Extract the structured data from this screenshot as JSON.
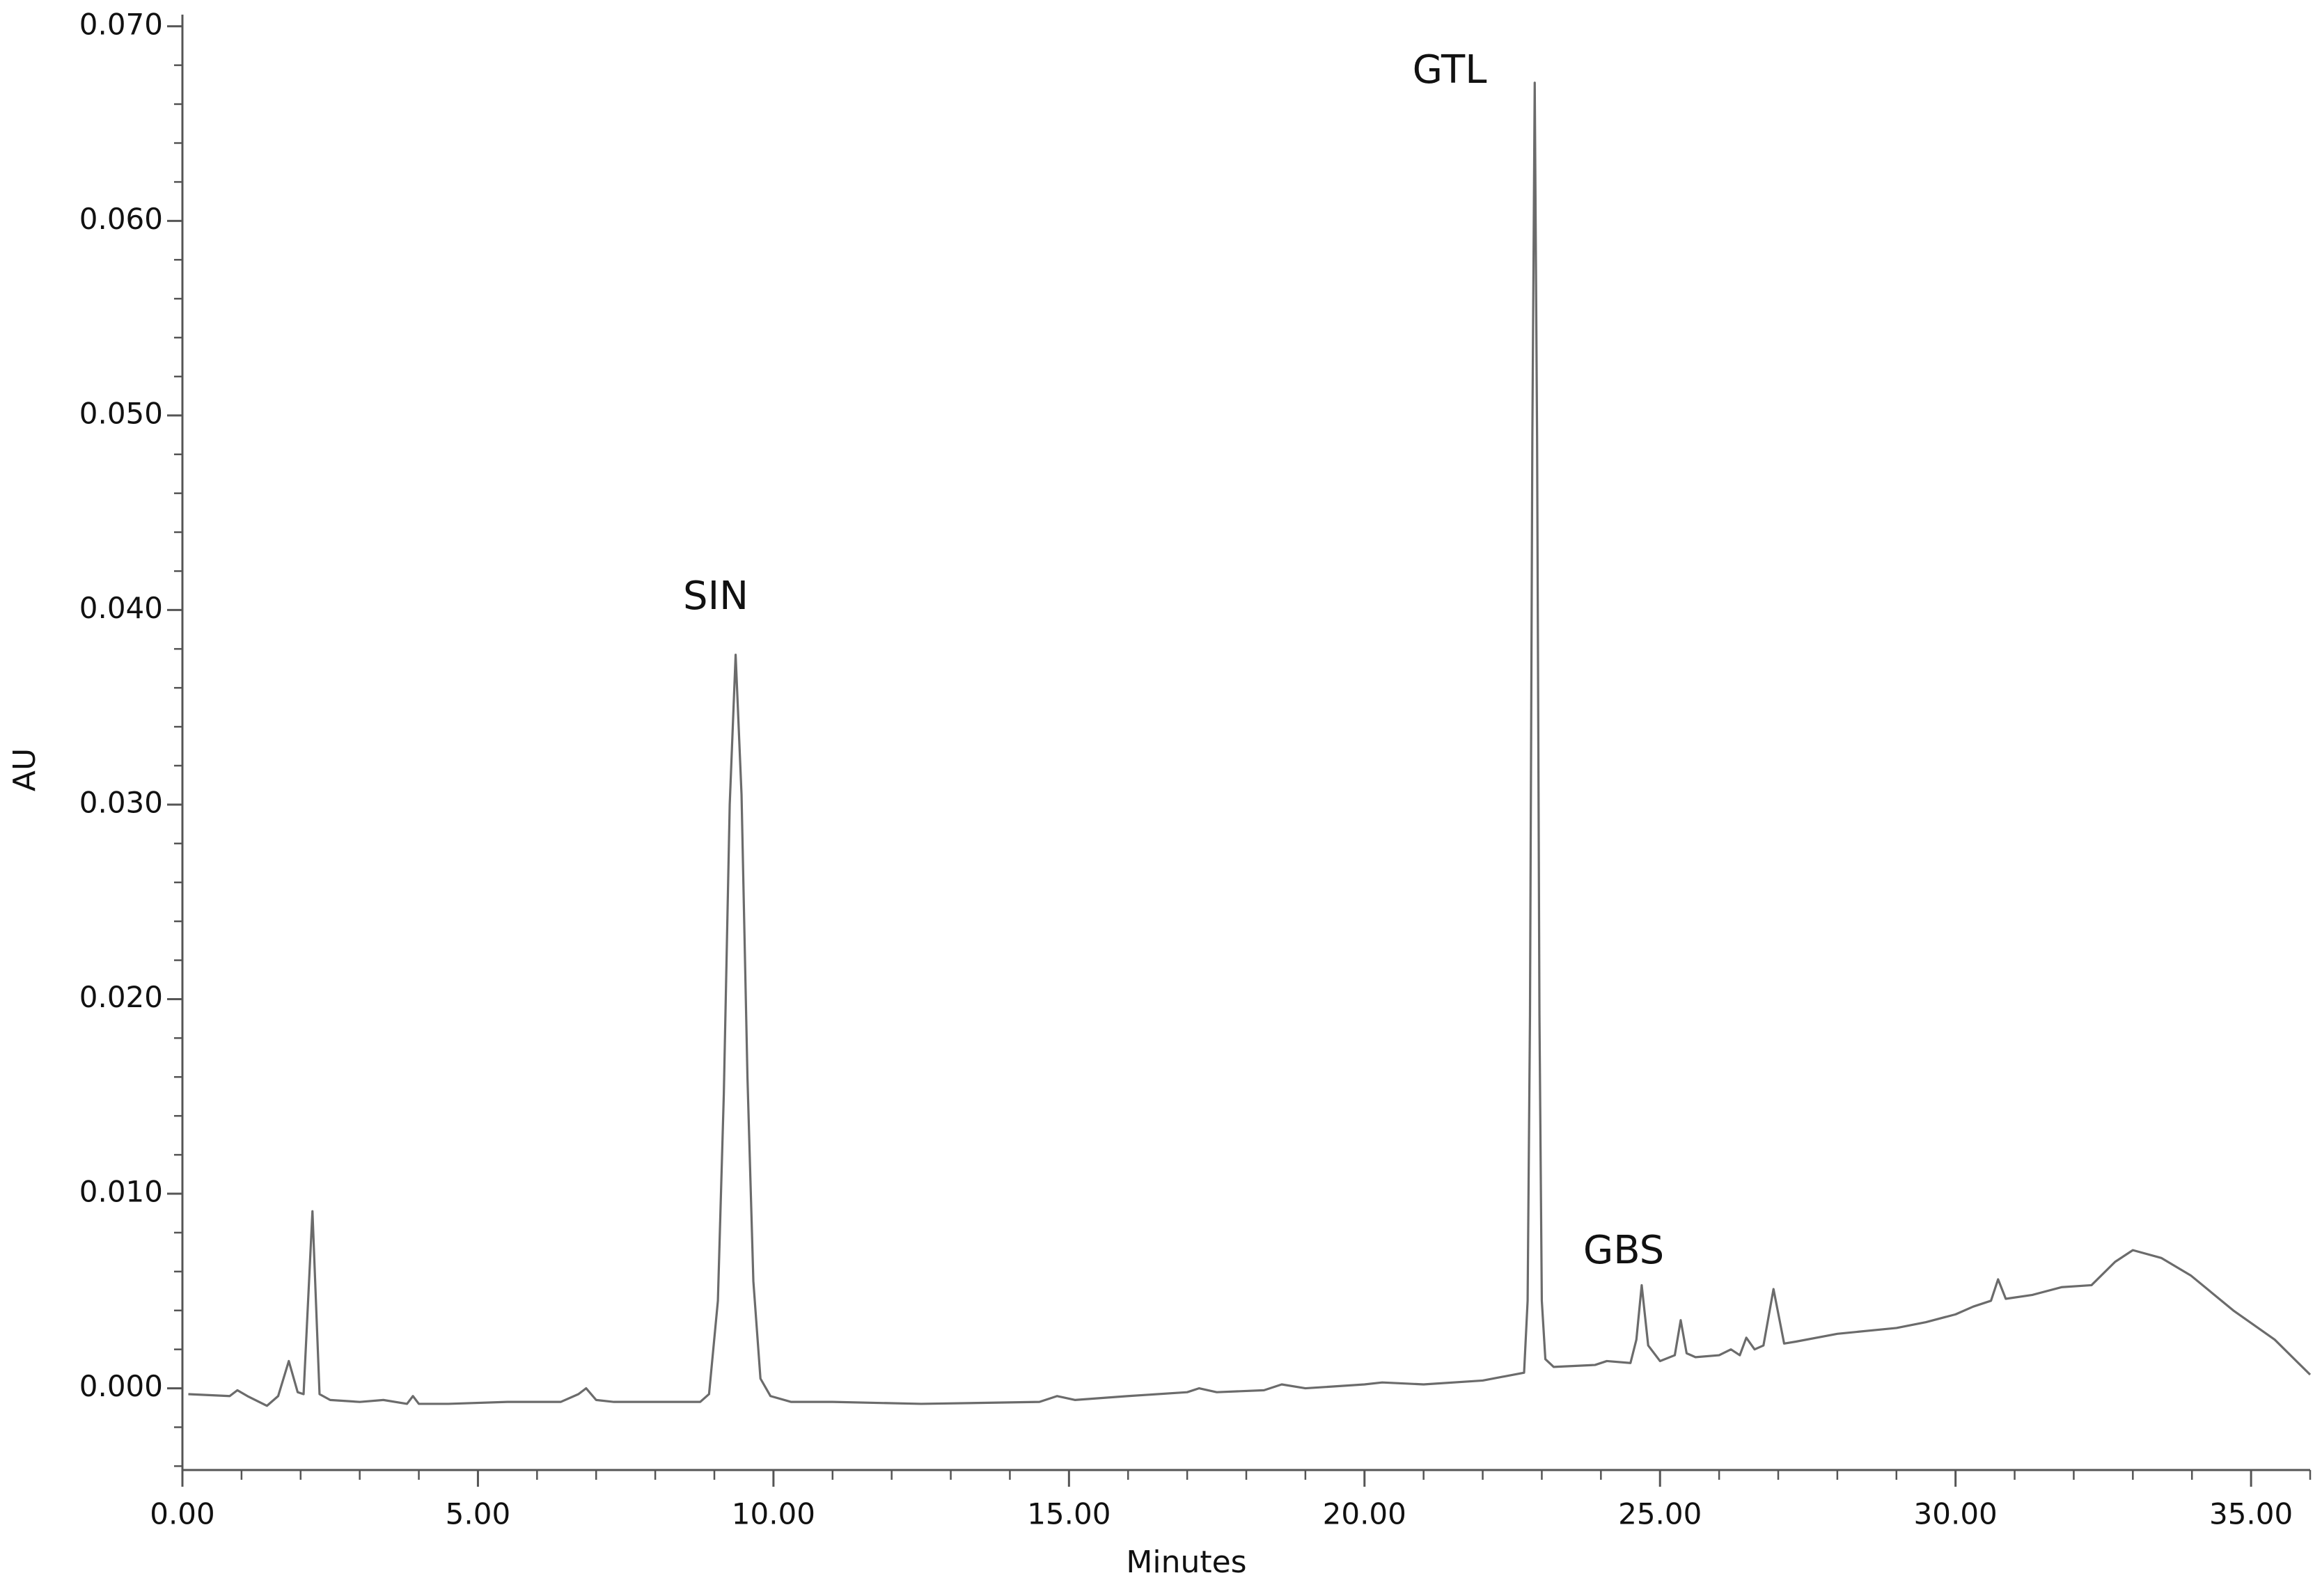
{
  "chart_data": {
    "type": "line",
    "xlabel": "Minutes",
    "ylabel": "AU",
    "annotations": [
      "SIN",
      "GTL",
      "GBS"
    ],
    "xlim": [
      0,
      36
    ],
    "ylim": [
      -0.0042,
      0.0706
    ],
    "xticks": [
      {
        "value": 0,
        "label": "0.00"
      },
      {
        "value": 5,
        "label": "5.00"
      },
      {
        "value": 10,
        "label": "10.00"
      },
      {
        "value": 15,
        "label": "15.00"
      },
      {
        "value": 20,
        "label": "20.00"
      },
      {
        "value": 25,
        "label": "25.00"
      },
      {
        "value": 30,
        "label": "30.00"
      },
      {
        "value": 35,
        "label": "35.00"
      }
    ],
    "xticks_minor": [
      1,
      2,
      3,
      4,
      6,
      7,
      8,
      9,
      11,
      12,
      13,
      14,
      16,
      17,
      18,
      19,
      21,
      22,
      23,
      24,
      26,
      27,
      28,
      29,
      31,
      32,
      33,
      34,
      36
    ],
    "yticks": [
      {
        "value": 0,
        "label": "0.000"
      },
      {
        "value": 0.01,
        "label": "0.010"
      },
      {
        "value": 0.02,
        "label": "0.020"
      },
      {
        "value": 0.03,
        "label": "0.030"
      },
      {
        "value": 0.04,
        "label": "0.040"
      },
      {
        "value": 0.05,
        "label": "0.050"
      },
      {
        "value": 0.06,
        "label": "0.060"
      },
      {
        "value": 0.07,
        "label": "0.070"
      }
    ],
    "yticks_minor": [
      -0.004,
      -0.002,
      0.002,
      0.004,
      0.006,
      0.008,
      0.012,
      0.014,
      0.016,
      0.018,
      0.022,
      0.024,
      0.026,
      0.028,
      0.032,
      0.034,
      0.036,
      0.038,
      0.042,
      0.044,
      0.046,
      0.048,
      0.052,
      0.054,
      0.056,
      0.058,
      0.062,
      0.064,
      0.066,
      0.068
    ],
    "series": [
      {
        "color": "#6b6b6b",
        "x": [
          0.1,
          0.8,
          0.93,
          1.1,
          1.43,
          1.62,
          1.8,
          1.95,
          2.05,
          2.2,
          2.32,
          2.5,
          3.0,
          3.4,
          3.8,
          3.9,
          4.0,
          4.5,
          5.5,
          6.4,
          6.7,
          6.83,
          7.0,
          7.3,
          8.0,
          8.76,
          8.91,
          9.06,
          9.16,
          9.26,
          9.36,
          9.46,
          9.56,
          9.66,
          9.78,
          9.95,
          10.3,
          11.0,
          12.5,
          14.5,
          14.8,
          15.1,
          16.0,
          17.0,
          17.2,
          17.5,
          18.3,
          18.6,
          19.0,
          20.0,
          20.3,
          21.0,
          22.0,
          22.7,
          22.76,
          22.8,
          22.84,
          22.88,
          22.92,
          22.96,
          23.0,
          23.06,
          23.2,
          23.9,
          24.1,
          24.5,
          24.6,
          24.69,
          24.8,
          25.0,
          25.25,
          25.35,
          25.45,
          25.6,
          26.0,
          26.2,
          26.35,
          26.46,
          26.6,
          26.75,
          26.92,
          27.1,
          27.3,
          28.0,
          29.0,
          29.5,
          30.0,
          30.3,
          30.6,
          30.72,
          30.85,
          31.3,
          31.8,
          32.3,
          32.7,
          33.0,
          33.48,
          33.98,
          34.7,
          35.4,
          36.0
        ],
        "values": [
          -0.0003,
          -0.0004,
          -0.0001,
          -0.0004,
          -0.0009,
          -0.0004,
          0.0014,
          -0.0002,
          -0.0003,
          0.0091,
          -0.0003,
          -0.0006,
          -0.0007,
          -0.0006,
          -0.0008,
          -0.0004,
          -0.0008,
          -0.0008,
          -0.0007,
          -0.0007,
          -0.0003,
          0.0,
          -0.0006,
          -0.0007,
          -0.0007,
          -0.0007,
          -0.0003,
          0.0045,
          0.0151,
          0.03,
          0.0377,
          0.0305,
          0.016,
          0.0055,
          0.0005,
          -0.0004,
          -0.0007,
          -0.0007,
          -0.0008,
          -0.0007,
          -0.0004,
          -0.0006,
          -0.0004,
          -0.0002,
          0.0,
          -0.0002,
          -0.0001,
          0.0002,
          0.0,
          0.0002,
          0.0003,
          0.0002,
          0.0004,
          0.0008,
          0.0045,
          0.0192,
          0.0489,
          0.0671,
          0.0489,
          0.0192,
          0.0045,
          0.0015,
          0.0011,
          0.0012,
          0.0014,
          0.0013,
          0.0025,
          0.0053,
          0.0022,
          0.0014,
          0.0017,
          0.0035,
          0.0018,
          0.0016,
          0.0017,
          0.002,
          0.0017,
          0.0026,
          0.002,
          0.0022,
          0.0051,
          0.0023,
          0.0024,
          0.0028,
          0.0031,
          0.0034,
          0.0038,
          0.0042,
          0.0045,
          0.0056,
          0.0046,
          0.0048,
          0.0052,
          0.0053,
          0.0065,
          0.0071,
          0.0067,
          0.0058,
          0.004,
          0.0025,
          0.0007
        ]
      }
    ]
  }
}
